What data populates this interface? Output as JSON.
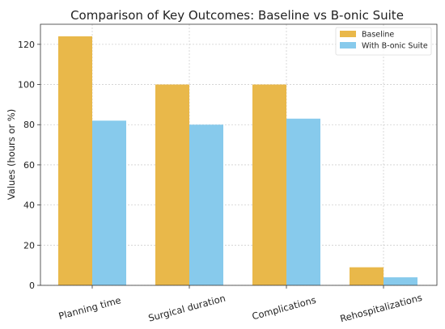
{
  "chart_data": {
    "type": "bar",
    "title": "Comparison of Key Outcomes: Baseline vs B-onic Suite",
    "xlabel": "",
    "ylabel": "Values (hours or %)",
    "categories": [
      "Planning time",
      "Surgical duration",
      "Complications",
      "Rehospitalizations"
    ],
    "series": [
      {
        "name": "Baseline",
        "values": [
          124,
          100,
          100,
          9
        ],
        "color": "#E9B84A"
      },
      {
        "name": "With B-onic Suite",
        "values": [
          82,
          80,
          83,
          4
        ],
        "color": "#87CAEC"
      }
    ],
    "ylim": [
      0,
      130
    ],
    "yticks": [
      0,
      20,
      40,
      60,
      80,
      100,
      120
    ],
    "grid": true,
    "grid_style": "dashed",
    "legend_position": "top-right"
  }
}
